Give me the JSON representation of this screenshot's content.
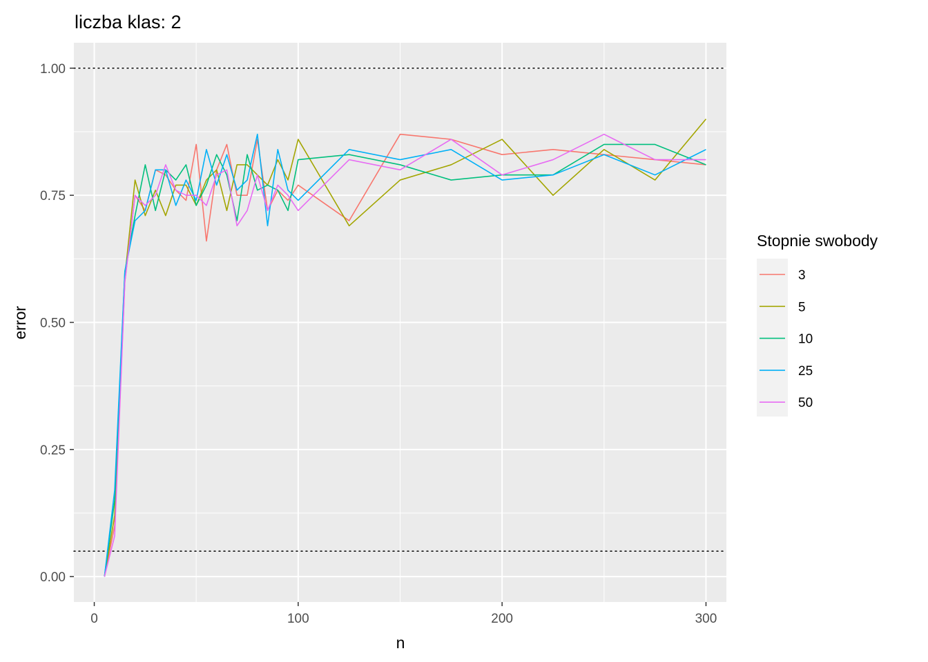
{
  "chart_data": {
    "type": "line",
    "title": "liczba klas: 2",
    "xlabel": "n",
    "ylabel": "error",
    "xlim": [
      -10,
      310
    ],
    "ylim": [
      -0.05,
      1.05
    ],
    "x_ticks": [
      0,
      100,
      200,
      300
    ],
    "x_tick_labels": [
      "0",
      "100",
      "200",
      "300"
    ],
    "y_ticks": [
      0,
      0.25,
      0.5,
      0.75,
      1.0
    ],
    "y_tick_labels": [
      "0.00",
      "0.25",
      "0.50",
      "0.75",
      "1.00"
    ],
    "reference_lines": [
      0.05,
      1.0
    ],
    "grid": true,
    "legend": {
      "title": "Stopnie swobody",
      "position": "right"
    },
    "x": [
      5,
      10,
      15,
      20,
      25,
      30,
      35,
      40,
      45,
      50,
      55,
      60,
      65,
      70,
      75,
      80,
      85,
      90,
      95,
      100,
      125,
      150,
      175,
      200,
      225,
      250,
      275,
      300
    ],
    "series": [
      {
        "name": "3",
        "color": "#F8766D",
        "values": [
          0.0,
          0.1,
          0.58,
          0.75,
          0.72,
          0.8,
          0.79,
          0.76,
          0.74,
          0.85,
          0.66,
          0.8,
          0.85,
          0.75,
          0.75,
          0.86,
          0.72,
          0.76,
          0.74,
          0.77,
          0.7,
          0.87,
          0.86,
          0.83,
          0.84,
          0.83,
          0.82,
          0.81
        ]
      },
      {
        "name": "5",
        "color": "#A3A500",
        "values": [
          0.0,
          0.12,
          0.59,
          0.78,
          0.71,
          0.76,
          0.71,
          0.77,
          0.77,
          0.73,
          0.78,
          0.8,
          0.72,
          0.81,
          0.81,
          0.79,
          0.77,
          0.82,
          0.78,
          0.86,
          0.69,
          0.78,
          0.81,
          0.86,
          0.75,
          0.84,
          0.78,
          0.9
        ]
      },
      {
        "name": "10",
        "color": "#00BF7D",
        "values": [
          0.0,
          0.15,
          0.6,
          0.71,
          0.81,
          0.72,
          0.8,
          0.78,
          0.81,
          0.73,
          0.77,
          0.83,
          0.79,
          0.7,
          0.83,
          0.76,
          0.77,
          0.76,
          0.72,
          0.82,
          0.83,
          0.81,
          0.78,
          0.79,
          0.79,
          0.85,
          0.85,
          0.81
        ]
      },
      {
        "name": "25",
        "color": "#00B0F6",
        "values": [
          0.0,
          0.17,
          0.6,
          0.7,
          0.72,
          0.8,
          0.8,
          0.73,
          0.78,
          0.74,
          0.84,
          0.77,
          0.83,
          0.76,
          0.78,
          0.87,
          0.69,
          0.84,
          0.76,
          0.74,
          0.84,
          0.82,
          0.84,
          0.78,
          0.79,
          0.83,
          0.79,
          0.84
        ]
      },
      {
        "name": "50",
        "color": "#E76BF3",
        "values": [
          0.0,
          0.08,
          0.58,
          0.75,
          0.73,
          0.75,
          0.81,
          0.76,
          0.75,
          0.75,
          0.73,
          0.79,
          0.8,
          0.69,
          0.72,
          0.79,
          0.72,
          0.77,
          0.75,
          0.72,
          0.82,
          0.8,
          0.86,
          0.79,
          0.82,
          0.87,
          0.82,
          0.82
        ]
      }
    ],
    "colors": {
      "panel_background": "#EBEBEB",
      "grid_major": "#FFFFFF",
      "tick_text": "#4D4D4D",
      "reference_line": "#000000"
    }
  }
}
